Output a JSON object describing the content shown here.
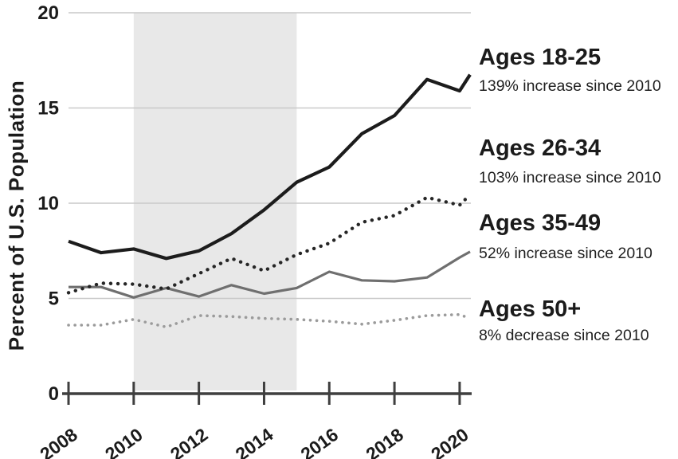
{
  "figure": {
    "y_axis_title": "Percent of U.S. Population"
  },
  "legend": {
    "items": [
      {
        "title": "Ages 18-25",
        "subtitle": "139% increase since 2010"
      },
      {
        "title": "Ages 26-34",
        "subtitle": "103% increase since 2010"
      },
      {
        "title": "Ages 35-49",
        "subtitle": "52% increase since 2010"
      },
      {
        "title": "Ages 50+",
        "subtitle": "8% decrease since 2010"
      }
    ]
  },
  "chart_data": {
    "type": "line",
    "title": "",
    "xlabel": "",
    "ylabel": "Percent of U.S. Population",
    "xlim": [
      2008,
      2020.45
    ],
    "ylim": [
      0,
      20
    ],
    "x_ticks": [
      2008,
      2010,
      2012,
      2014,
      2016,
      2018,
      2020
    ],
    "y_ticks": [
      0,
      5,
      10,
      15,
      20
    ],
    "grid": "horizontal",
    "legend_position": "right",
    "axis_color": "#3f3f3f",
    "gridline_color": "#c9c9c9",
    "label_color": "#1b1b1b",
    "shaded_region": {
      "x_start": 2010,
      "x_end": 2015,
      "color": "#e8e8e8"
    },
    "x": [
      2008,
      2009,
      2010,
      2011,
      2012,
      2013,
      2014,
      2015,
      2016,
      2017,
      2018,
      2019,
      2020,
      2020.32
    ],
    "series": [
      {
        "name": "Ages 35-49",
        "annotation": "52% increase since 2010",
        "style": "solid",
        "color": "#6f6f6f",
        "stroke_width": 3.2,
        "dash_gap": 0,
        "values": [
          5.6,
          5.6,
          5.05,
          5.55,
          5.1,
          5.7,
          5.25,
          5.55,
          6.4,
          5.95,
          5.9,
          6.1,
          7.15,
          7.45
        ]
      },
      {
        "name": "Ages 50+",
        "annotation": "8% decrease since 2010",
        "style": "dotted",
        "color": "#9b9b9b",
        "stroke_width": 3.6,
        "dash_gap": 8,
        "values": [
          3.6,
          3.6,
          3.9,
          3.5,
          4.1,
          4.05,
          3.95,
          3.9,
          3.8,
          3.65,
          3.85,
          4.1,
          4.15,
          3.95
        ]
      },
      {
        "name": "Ages 26-34",
        "annotation": "103% increase since 2010",
        "style": "dotted",
        "color": "#262626",
        "stroke_width": 4.4,
        "dash_gap": 9,
        "values": [
          5.3,
          5.8,
          5.75,
          5.5,
          6.3,
          7.1,
          6.45,
          7.3,
          7.9,
          9.0,
          9.35,
          10.3,
          9.9,
          10.45
        ]
      },
      {
        "name": "Ages 18-25",
        "annotation": "139% increase since 2010",
        "style": "solid",
        "color": "#1c1c1c",
        "stroke_width": 4.2,
        "dash_gap": 0,
        "values": [
          8.0,
          7.4,
          7.6,
          7.1,
          7.5,
          8.4,
          9.65,
          11.1,
          11.9,
          13.65,
          14.6,
          16.5,
          15.9,
          16.75
        ]
      }
    ]
  }
}
